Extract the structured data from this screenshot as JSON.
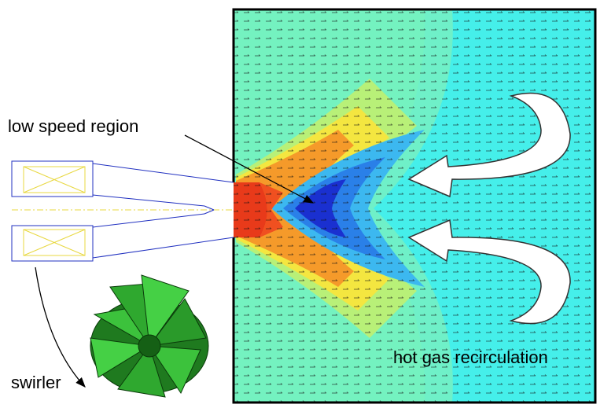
{
  "labels": {
    "low_speed": "low speed region",
    "recirculation": "hot gas recirculation",
    "swirler": "swirler"
  }
}
